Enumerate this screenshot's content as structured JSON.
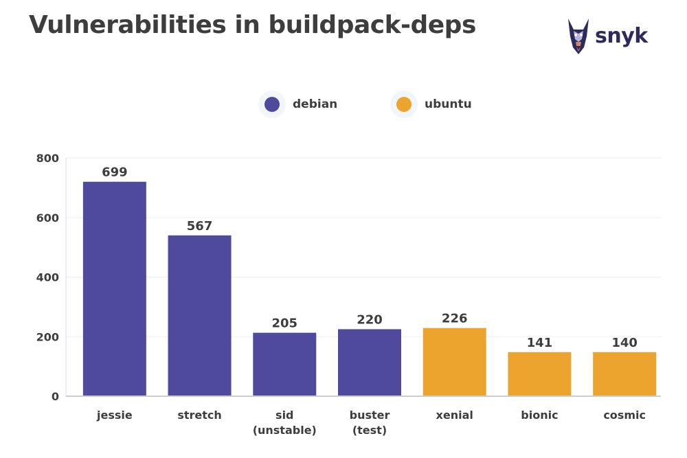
{
  "header": {
    "title": "Vulnerabilities in buildpack-deps",
    "brand": "snyk",
    "brand_icon": "doberman-logo-icon"
  },
  "colors": {
    "debian": "#4f4a9c",
    "ubuntu": "#eda42f"
  },
  "chart_data": {
    "type": "bar",
    "title": "Vulnerabilities in buildpack-deps",
    "xlabel": "",
    "ylabel": "",
    "ylim": [
      0,
      800
    ],
    "yticks": [
      0,
      200,
      400,
      600,
      800
    ],
    "grid": true,
    "legend_position": "top-center",
    "legend": [
      {
        "name": "debian",
        "color": "#4f4a9c"
      },
      {
        "name": "ubuntu",
        "color": "#eda42f"
      }
    ],
    "categories": [
      "jessie",
      "stretch",
      "sid (unstable)",
      "buster (test)",
      "xenial",
      "bionic",
      "cosmic"
    ],
    "category_lines": [
      [
        "jessie"
      ],
      [
        "stretch"
      ],
      [
        "sid",
        "(unstable)"
      ],
      [
        "buster",
        "(test)"
      ],
      [
        "xenial"
      ],
      [
        "bionic"
      ],
      [
        "cosmic"
      ]
    ],
    "values": [
      699,
      567,
      205,
      220,
      226,
      141,
      140
    ],
    "bar_heights": [
      720,
      540,
      213,
      225,
      229,
      148,
      148
    ],
    "groups": [
      "debian",
      "debian",
      "debian",
      "debian",
      "ubuntu",
      "ubuntu",
      "ubuntu"
    ]
  }
}
